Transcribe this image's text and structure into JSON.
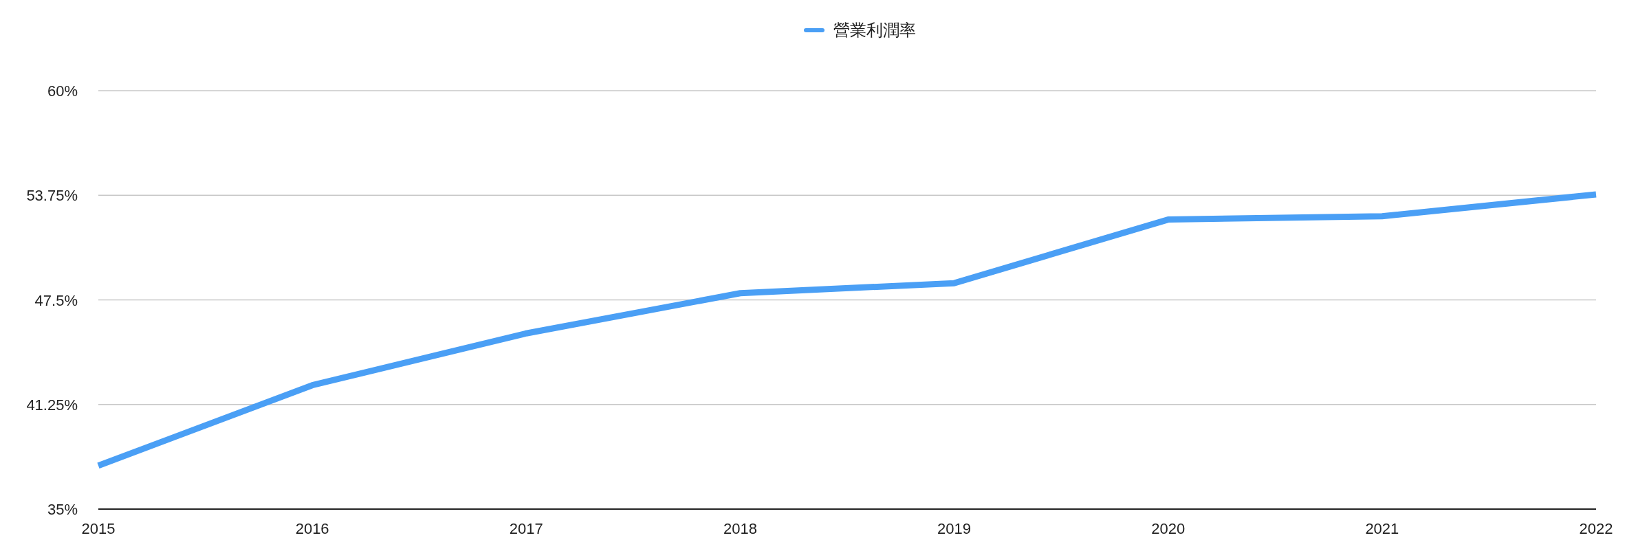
{
  "chart_data": {
    "type": "line",
    "categories": [
      "2015",
      "2016",
      "2017",
      "2018",
      "2019",
      "2020",
      "2021",
      "2022"
    ],
    "series": [
      {
        "name": "營業利潤率",
        "color": "#4a9ff5",
        "values": [
          37.6,
          42.4,
          45.5,
          47.9,
          48.5,
          52.3,
          52.5,
          53.8
        ]
      }
    ],
    "ylim": [
      35,
      60
    ],
    "yticks": [
      {
        "value": 35,
        "label": "35%"
      },
      {
        "value": 41.25,
        "label": "41.25%"
      },
      {
        "value": 47.5,
        "label": "47.5%"
      },
      {
        "value": 53.75,
        "label": "53.75%"
      },
      {
        "value": 60,
        "label": "60%"
      }
    ],
    "grid": "y",
    "legend": "top",
    "marker": "none",
    "line_style": "solid"
  }
}
